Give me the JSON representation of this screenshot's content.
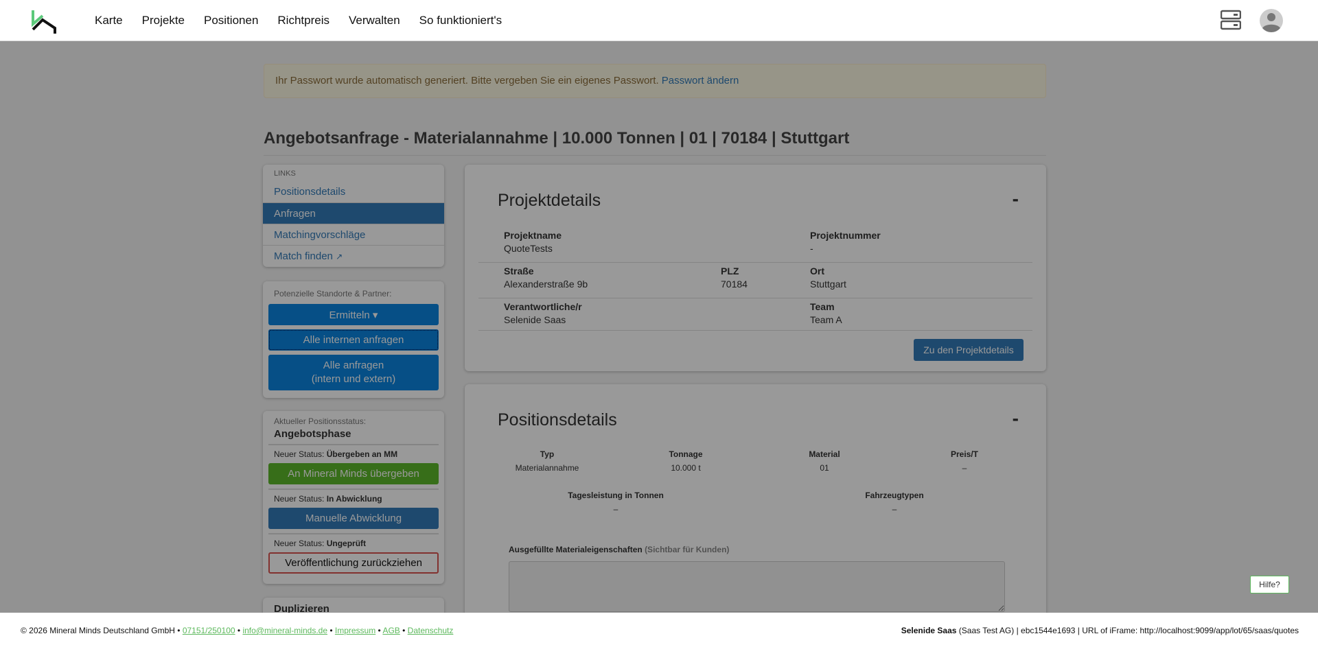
{
  "nav": {
    "items": [
      "Karte",
      "Projekte",
      "Positionen",
      "Richtpreis",
      "Verwalten",
      "So funktioniert's"
    ]
  },
  "alert": {
    "text": "Ihr Passwort wurde automatisch generiert. Bitte vergeben Sie ein eigenes Passwort. ",
    "link": "Passwort ändern"
  },
  "page_title": "Angebotsanfrage - Materialannahme | 10.000 Tonnen | 01 | 70184 | Stuttgart",
  "links": {
    "heading": "LINKS",
    "items": [
      "Positionsdetails",
      "Anfragen",
      "Matchingvorschläge",
      "Match finden"
    ],
    "active": "Anfragen"
  },
  "partners": {
    "label": "Potenzielle Standorte & Partner:",
    "ermitteln": "Ermitteln",
    "alle_internen": "Alle internen anfragen",
    "alle_line1": "Alle anfragen",
    "alle_line2": "(intern und extern)"
  },
  "status": {
    "label": "Aktueller Positionsstatus:",
    "current": "Angebotsphase",
    "prefix": "Neuer Status: ",
    "s1": "Übergeben an MM",
    "b1": "An Mineral Minds übergeben",
    "s2": "In Abwicklung",
    "b2": "Manuelle Abwicklung",
    "s3": "Ungeprüft",
    "b3": "Veröffentlichung zurückziehen"
  },
  "duplicate": {
    "label": "Duplizieren"
  },
  "project": {
    "title": "Projektdetails",
    "collapse": "-",
    "name_l": "Projektname",
    "name": "QuoteTests",
    "nr_l": "Projektnummer",
    "nr": "-",
    "street_l": "Straße",
    "street": "Alexanderstraße 9b",
    "plz_l": "PLZ",
    "plz": "70184",
    "ort_l": "Ort",
    "ort": "Stuttgart",
    "resp_l": "Verantwortliche/r",
    "resp": "Selenide Saas",
    "team_l": "Team",
    "team": "Team A",
    "button": "Zu den Projektdetails"
  },
  "position": {
    "title": "Positionsdetails",
    "collapse": "-",
    "typ_l": "Typ",
    "typ": "Materialannahme",
    "ton_l": "Tonnage",
    "ton": "10.000 t",
    "mat_l": "Material",
    "mat": "01",
    "price_l": "Preis/T",
    "price": "–",
    "daily_l": "Tagesleistung in Tonnen",
    "daily": "–",
    "veh_l": "Fahrzeugtypen",
    "veh": "–",
    "props_l": "Ausgefüllte Materialeigenschaften",
    "props_hint": "(Sichtbar für Kunden)"
  },
  "footer": {
    "copy": "© 2026 Mineral Minds Deutschland GmbH • ",
    "phone": "07151/250100",
    "email": "info@mineral-minds.de",
    "impressum": "Impressum",
    "agb": "AGB",
    "datenschutz": "Datenschutz",
    "sep": " • ",
    "user": "Selenide Saas",
    "right": " (Saas Test AG) | ebc1544e1693 | URL of iFrame: http://localhost:9099/app/lot/65/saas/quotes"
  },
  "help": "Hilfe?",
  "colors": {
    "brand_green": "#5cc97b",
    "primary": "#337ab7",
    "accent_blue": "#0a84e0",
    "success": "#5cb82a",
    "danger": "#d9534f"
  }
}
